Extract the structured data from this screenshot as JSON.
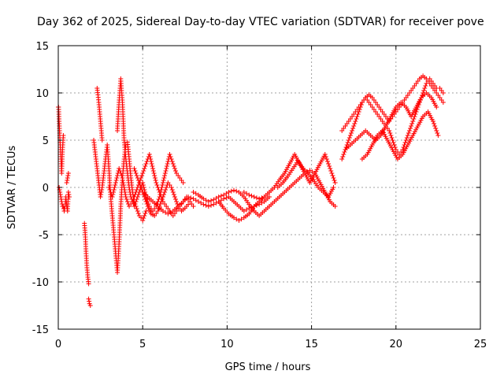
{
  "chart_data": {
    "type": "scatter",
    "title": "Day 362 of 2025, Sidereal Day-to-day VTEC variation (SDTVAR) for receiver pove",
    "xlabel": "GPS time / hours",
    "ylabel": "SDTVAR / TECUs",
    "xlim": [
      0,
      25
    ],
    "ylim": [
      -15,
      15
    ],
    "xticks": [
      0,
      5,
      10,
      15,
      20,
      25
    ],
    "yticks": [
      -15,
      -10,
      -5,
      0,
      5,
      10,
      15
    ],
    "grid": true,
    "marker": "+",
    "colors": {
      "series": "#ff0000",
      "axes": "#000000",
      "grid": "#a0a0a0",
      "background": "#ffffff"
    },
    "series": [
      {
        "name": "s1",
        "x": [
          0.0,
          0.02,
          0.05,
          0.1,
          0.15,
          0.2,
          0.25,
          0.3
        ],
        "y": [
          8.5,
          8.5,
          7.0,
          5.0,
          3.5,
          1.5,
          4.0,
          5.5
        ]
      },
      {
        "name": "s2",
        "x": [
          0.05,
          0.1,
          0.15,
          0.2,
          0.25,
          0.3,
          0.35,
          0.4,
          0.45,
          0.5,
          0.55,
          0.6,
          0.65
        ],
        "y": [
          0.0,
          -0.5,
          -1.0,
          -1.5,
          -2.0,
          -2.0,
          -2.5,
          -2.0,
          -1.0,
          -2.0,
          -2.5,
          -0.5,
          -1.0
        ]
      },
      {
        "name": "s3",
        "x": [
          0.5,
          0.55,
          0.6
        ],
        "y": [
          0.5,
          1.0,
          1.5
        ]
      },
      {
        "name": "s4",
        "x": [
          1.55,
          1.6,
          1.65,
          1.7,
          1.75,
          1.8
        ],
        "y": [
          -3.8,
          -5.0,
          -7.0,
          -8.5,
          -9.5,
          -10.2
        ]
      },
      {
        "name": "s5",
        "x": [
          1.8,
          1.85,
          1.9
        ],
        "y": [
          -11.8,
          -12.3,
          -12.5
        ]
      },
      {
        "name": "s6",
        "x": [
          2.3,
          2.35,
          2.4,
          2.45,
          2.5,
          2.55,
          2.6
        ],
        "y": [
          10.5,
          9.8,
          9.0,
          8.0,
          7.0,
          6.0,
          5.0
        ]
      },
      {
        "name": "s7",
        "x": [
          2.1,
          2.2,
          2.3,
          2.4,
          2.5,
          2.6,
          2.7,
          2.8,
          2.9,
          3.0,
          3.1,
          3.2,
          3.3,
          3.4,
          3.5,
          3.6,
          3.7,
          3.8,
          3.9,
          4.0,
          4.1,
          4.2,
          4.3,
          4.4,
          4.5,
          4.6,
          4.7,
          4.8,
          4.9,
          5.0,
          5.1,
          5.2
        ],
        "y": [
          5.0,
          3.5,
          2.0,
          0.5,
          -1.0,
          0.0,
          1.5,
          3.0,
          4.5,
          2.0,
          -1.0,
          -3.0,
          -5.0,
          -7.0,
          -9.0,
          -6.0,
          -2.0,
          1.0,
          3.0,
          4.5,
          4.8,
          3.0,
          1.0,
          -0.5,
          -1.5,
          -2.0,
          -2.5,
          -3.0,
          -3.2,
          -3.5,
          -3.0,
          -2.5
        ]
      },
      {
        "name": "s8",
        "x": [
          3.5,
          3.6,
          3.7,
          3.8,
          3.9,
          4.0,
          4.1,
          4.2,
          4.3,
          4.4,
          4.5,
          4.6,
          4.7,
          4.8,
          4.9,
          5.0,
          5.2,
          5.4,
          5.6,
          5.8,
          6.0,
          6.2,
          6.4,
          6.6,
          6.8,
          7.0,
          7.2,
          7.4
        ],
        "y": [
          6.0,
          9.0,
          11.5,
          9.0,
          5.0,
          3.0,
          1.5,
          0.0,
          -1.0,
          -1.5,
          -2.0,
          -1.5,
          -1.0,
          -0.5,
          0.0,
          0.5,
          -1.0,
          -2.0,
          -2.5,
          -2.0,
          -1.0,
          0.5,
          2.0,
          3.5,
          2.5,
          1.5,
          1.0,
          0.5
        ]
      },
      {
        "name": "s9",
        "x": [
          3.0,
          3.2,
          3.4,
          3.6,
          3.8,
          4.0,
          4.2,
          4.4,
          4.6,
          4.8,
          5.0,
          5.2,
          5.4,
          5.6,
          5.8,
          6.0,
          6.2,
          6.4,
          6.6,
          6.8,
          7.0,
          7.2,
          7.4,
          7.6,
          7.8,
          8.0
        ],
        "y": [
          0.0,
          -1.0,
          0.5,
          2.0,
          1.0,
          -1.0,
          -2.0,
          -1.5,
          -0.5,
          0.5,
          1.5,
          2.5,
          3.5,
          2.0,
          0.5,
          -0.5,
          -1.5,
          -2.0,
          -2.5,
          -3.0,
          -2.5,
          -2.0,
          -1.5,
          -1.0,
          -1.5,
          -2.0
        ]
      },
      {
        "name": "s10",
        "x": [
          4.5,
          4.7,
          4.9,
          5.1,
          5.3,
          5.5,
          5.7,
          5.9,
          6.1,
          6.3,
          6.5,
          6.7,
          6.9,
          7.1,
          7.3,
          7.5,
          7.7
        ],
        "y": [
          2.0,
          1.0,
          0.0,
          -1.0,
          -2.0,
          -2.8,
          -3.0,
          -2.5,
          -1.5,
          -0.5,
          0.5,
          0.0,
          -1.0,
          -2.0,
          -2.5,
          -2.2,
          -1.8
        ]
      },
      {
        "name": "s11",
        "x": [
          5.0,
          5.3,
          5.6,
          5.9,
          6.2,
          6.5,
          6.8,
          7.1,
          7.4,
          7.7,
          8.0,
          8.3,
          8.6,
          8.9,
          9.2,
          9.5,
          9.8,
          10.1,
          10.4,
          10.7,
          11.0,
          11.3,
          11.6,
          11.9,
          12.2,
          12.5
        ],
        "y": [
          -0.5,
          -1.0,
          -1.5,
          -2.0,
          -2.5,
          -2.8,
          -2.5,
          -2.0,
          -1.5,
          -1.0,
          -1.2,
          -1.5,
          -1.8,
          -2.0,
          -1.8,
          -1.5,
          -1.2,
          -1.0,
          -1.5,
          -2.0,
          -2.5,
          -2.2,
          -2.0,
          -1.8,
          -1.5,
          -1.0
        ]
      },
      {
        "name": "s12",
        "x": [
          8.0,
          8.3,
          8.6,
          8.9,
          9.2,
          9.5,
          9.8,
          10.1,
          10.4,
          10.7,
          11.0,
          11.3,
          11.6,
          11.9,
          12.2,
          12.5
        ],
        "y": [
          -0.5,
          -0.8,
          -1.2,
          -1.5,
          -1.3,
          -1.0,
          -0.8,
          -0.5,
          -0.3,
          -0.5,
          -1.0,
          -1.8,
          -2.5,
          -3.0,
          -2.5,
          -2.0
        ]
      },
      {
        "name": "s13",
        "x": [
          9.5,
          9.8,
          10.1,
          10.4,
          10.7,
          11.0,
          11.3,
          11.6,
          11.9,
          12.2
        ],
        "y": [
          -1.5,
          -2.2,
          -2.8,
          -3.2,
          -3.5,
          -3.2,
          -2.8,
          -2.0,
          -1.5,
          -1.0
        ]
      },
      {
        "name": "s14",
        "x": [
          11.0,
          11.3,
          11.6,
          11.9,
          12.2,
          12.5,
          12.8,
          13.1,
          13.4,
          13.7,
          14.0,
          14.3,
          14.6,
          14.9,
          15.2,
          15.5,
          15.8,
          16.1,
          16.4
        ],
        "y": [
          -0.5,
          -0.8,
          -1.0,
          -1.2,
          -1.0,
          -0.5,
          0.0,
          0.8,
          1.5,
          2.5,
          3.5,
          2.5,
          1.5,
          0.5,
          1.5,
          2.5,
          3.5,
          2.0,
          0.5
        ]
      },
      {
        "name": "s15",
        "x": [
          12.5,
          12.8,
          13.1,
          13.4,
          13.7,
          14.0,
          14.3,
          14.6,
          14.9,
          15.2,
          15.5,
          15.8,
          16.1,
          16.4
        ],
        "y": [
          -2.0,
          -1.5,
          -1.0,
          -0.5,
          0.0,
          0.5,
          1.0,
          1.5,
          1.8,
          1.5,
          0.5,
          -0.5,
          -1.5,
          -2.0
        ]
      },
      {
        "name": "s16",
        "x": [
          13.0,
          13.3,
          13.6,
          13.9,
          14.2,
          14.5,
          14.8,
          15.1,
          15.4,
          15.7,
          16.0,
          16.3
        ],
        "y": [
          0.0,
          0.5,
          1.2,
          2.0,
          2.8,
          2.0,
          1.5,
          0.8,
          0.0,
          -0.5,
          -1.0,
          0.0
        ]
      },
      {
        "name": "s17",
        "x": [
          16.8,
          17.0,
          17.2,
          17.4,
          17.6,
          17.8,
          18.0,
          18.2,
          18.4,
          18.6,
          18.8,
          19.0,
          19.2,
          19.4,
          19.6,
          19.8,
          20.0,
          20.2,
          20.4,
          20.6,
          20.8,
          21.0,
          21.2,
          21.4,
          21.6,
          21.8,
          22.0,
          22.2,
          22.4,
          22.6,
          22.8
        ],
        "y": [
          3.0,
          4.0,
          5.0,
          6.0,
          7.0,
          8.0,
          9.0,
          9.5,
          9.0,
          8.5,
          8.0,
          7.5,
          7.0,
          6.5,
          6.0,
          5.0,
          4.0,
          3.5,
          4.0,
          5.0,
          6.0,
          7.0,
          8.0,
          9.0,
          10.0,
          11.0,
          11.5,
          11.0,
          10.5,
          10.5,
          10.0
        ]
      },
      {
        "name": "s18",
        "x": [
          16.8,
          17.0,
          17.2,
          17.4,
          17.6,
          17.8,
          18.0,
          18.2,
          18.4,
          18.6,
          18.8,
          19.0,
          19.2,
          19.4,
          19.6,
          19.8,
          20.0,
          20.2,
          20.4,
          20.6,
          20.8,
          21.0,
          21.2,
          21.4,
          21.6,
          21.8,
          22.0,
          22.2,
          22.4,
          22.6,
          22.8
        ],
        "y": [
          6.0,
          6.5,
          7.0,
          7.5,
          8.0,
          8.5,
          9.0,
          9.5,
          9.8,
          9.5,
          9.0,
          8.5,
          8.0,
          7.5,
          7.0,
          7.5,
          8.0,
          8.5,
          9.0,
          9.5,
          10.0,
          10.5,
          11.0,
          11.5,
          11.8,
          11.5,
          11.0,
          10.5,
          10.0,
          9.5,
          9.0
        ]
      },
      {
        "name": "s19",
        "x": [
          17.0,
          17.3,
          17.6,
          17.9,
          18.2,
          18.5,
          18.8,
          19.1,
          19.4,
          19.7,
          20.0,
          20.3,
          20.6,
          20.9,
          21.2,
          21.5,
          21.8,
          22.1,
          22.4
        ],
        "y": [
          4.0,
          4.5,
          5.0,
          5.5,
          6.0,
          5.5,
          5.0,
          5.5,
          6.5,
          7.5,
          8.5,
          9.0,
          8.5,
          7.5,
          8.5,
          9.5,
          10.0,
          9.5,
          8.5
        ]
      },
      {
        "name": "s20",
        "x": [
          18.0,
          18.3,
          18.6,
          18.9,
          19.2,
          19.5,
          19.8,
          20.1,
          20.4,
          20.7,
          21.0,
          21.3,
          21.6,
          21.9,
          22.2,
          22.5
        ],
        "y": [
          3.0,
          3.5,
          4.5,
          5.5,
          6.0,
          5.0,
          4.0,
          3.0,
          3.5,
          4.5,
          5.5,
          6.5,
          7.5,
          8.0,
          7.0,
          5.5
        ]
      }
    ]
  }
}
